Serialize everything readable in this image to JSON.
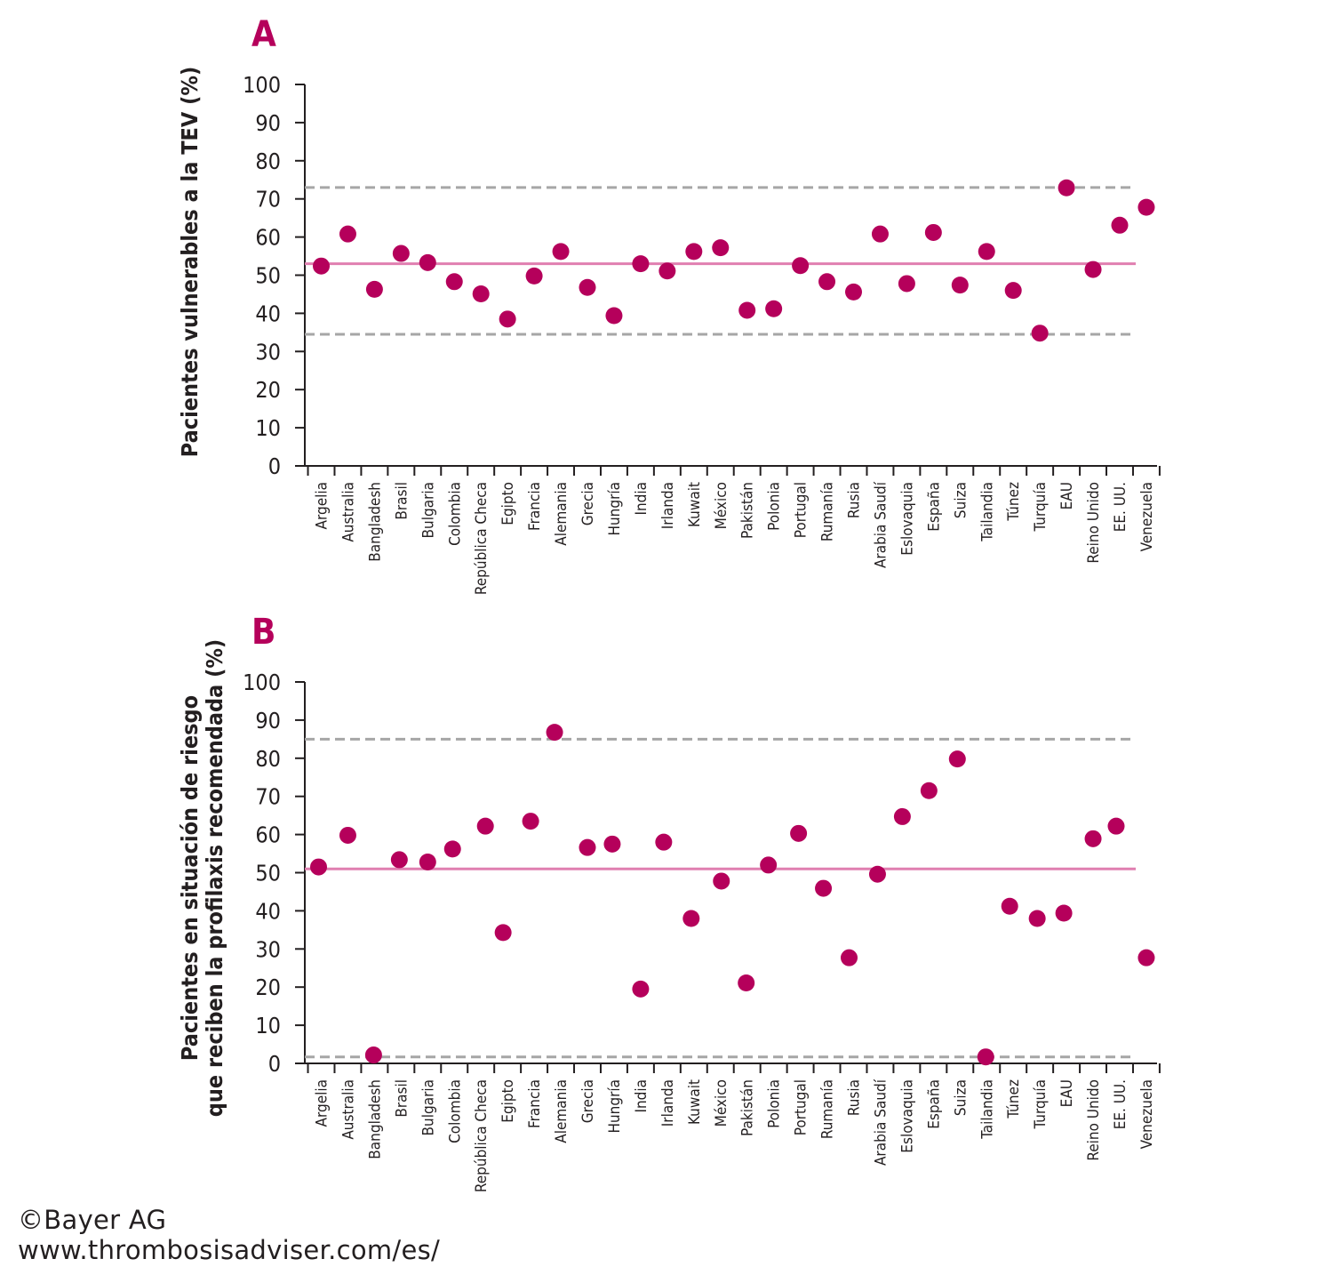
{
  "colors": {
    "marker": "#b5005b",
    "mean_line": "#e07fb0",
    "range_line": "#a6a6a6",
    "axis": "#231f20",
    "panel_label": "#b5005b"
  },
  "footer": {
    "copyright": "©Bayer AG",
    "url": "www.thrombosisadviser.com/es/"
  },
  "chart_data": [
    {
      "type": "scatter",
      "panel_label": "A",
      "ylabel_lines": [
        "Pacientes vulnerables a la TEV (%)"
      ],
      "ylim": [
        0,
        100
      ],
      "yticks": [
        0,
        10,
        20,
        30,
        40,
        50,
        60,
        70,
        80,
        90,
        100
      ],
      "categories": [
        "Argelia",
        "Australia",
        "Bangladesh",
        "Brasil",
        "Bulgaria",
        "Colombia",
        "República Checa",
        "Egipto",
        "Francia",
        "Alemania",
        "Grecia",
        "Hungría",
        "India",
        "Irlanda",
        "Kuwait",
        "México",
        "Pakistán",
        "Polonia",
        "Portugal",
        "Rumanía",
        "Rusia",
        "Arabia Saudí",
        "Eslovaquia",
        "España",
        "Suiza",
        "Tailandia",
        "Túnez",
        "Turquía",
        "EAU",
        "Reino Unido",
        "EE. UU.",
        "Venezuela"
      ],
      "values": [
        52.4,
        60.8,
        46.3,
        55.7,
        53.3,
        48.3,
        45.1,
        38.5,
        49.8,
        56.2,
        46.8,
        39.4,
        53.0,
        51.1,
        56.2,
        57.2,
        40.8,
        41.2,
        52.5,
        48.3,
        45.6,
        60.8,
        47.8,
        61.2,
        47.4,
        56.2,
        46.0,
        34.8,
        72.9,
        51.5,
        63.1,
        67.8
      ],
      "mean_line": 53,
      "range_lines": [
        34.5,
        73
      ]
    },
    {
      "type": "scatter",
      "panel_label": "B",
      "ylabel_lines": [
        "Pacientes en situación de riesgo",
        "que reciben la profilaxis recomendada (%)"
      ],
      "ylim": [
        0,
        100
      ],
      "yticks": [
        0,
        10,
        20,
        30,
        40,
        50,
        60,
        70,
        80,
        90,
        100
      ],
      "categories": [
        "Argelia",
        "Australia",
        "Bangladesh",
        "Brasil",
        "Bulgaria",
        "Colombia",
        "República Checa",
        "Egipto",
        "Francia",
        "Alemania",
        "Grecia",
        "Hungría",
        "India",
        "Irlanda",
        "Kuwait",
        "México",
        "Pakistán",
        "Polonia",
        "Portugal",
        "Rumanía",
        "Rusia",
        "Arabia Saudí",
        "Eslovaquia",
        "España",
        "Suiza",
        "Tailandia",
        "Túnez",
        "Turquía",
        "EAU",
        "Reino Unido",
        "EE. UU.",
        "Venezuela"
      ],
      "values": [
        51.5,
        59.8,
        2.2,
        53.4,
        52.8,
        56.2,
        62.2,
        34.3,
        63.5,
        86.8,
        56.6,
        57.5,
        19.5,
        58.0,
        38.0,
        47.8,
        21.1,
        52.0,
        60.3,
        45.9,
        27.7,
        49.6,
        64.7,
        71.5,
        79.8,
        1.7,
        41.2,
        38.0,
        39.4,
        58.9,
        62.2,
        27.7
      ],
      "x_offsets": [
        -3,
        0,
        -1,
        -2,
        0,
        -2,
        5,
        -5,
        -4,
        -7,
        0,
        -2,
        0,
        -4,
        -3,
        1,
        -1,
        -6,
        -2,
        -4,
        -5,
        -3,
        -5,
        -5,
        -3,
        -1,
        -4,
        -3,
        -3,
        0,
        -4,
        0
      ],
      "mean_line": 51,
      "range_lines": [
        1.7,
        85
      ]
    }
  ]
}
